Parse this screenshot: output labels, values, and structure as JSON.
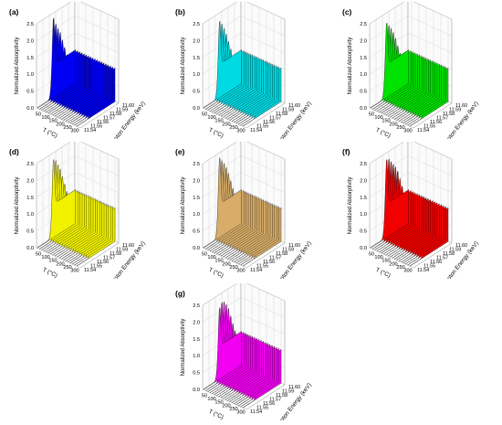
{
  "chart_data": [
    {
      "type": "area",
      "label": "(a)",
      "color": "#0000ff",
      "ylabel": "Normalized Absorptivity",
      "xlabel": "T (°C)",
      "zlabel": "Photon Energy (keV)",
      "yticks": [
        "0.0",
        "0.5",
        "1.0",
        "1.5",
        "2.0",
        "2.5"
      ],
      "xticks": [
        "50",
        "100",
        "150",
        "200",
        "250",
        "300"
      ],
      "zticks": [
        "11.54",
        "11.55",
        "11.56",
        "11.57",
        "11.58",
        "11.59",
        "11.60"
      ],
      "ylim": [
        0,
        2.5
      ],
      "xlim": [
        25,
        325
      ],
      "zlim": [
        11.54,
        11.6
      ],
      "series_temperatures": [
        30,
        45,
        60,
        75,
        90,
        105,
        120,
        135,
        150,
        165,
        180,
        195,
        210,
        225,
        240,
        255,
        270,
        285,
        300
      ],
      "peak_absorptivity": [
        2.45,
        2.3,
        2.2,
        2.1,
        1.9,
        1.7,
        1.5,
        1.35,
        1.25,
        1.2,
        1.18,
        1.17,
        1.17,
        1.17,
        1.17,
        1.17,
        1.17,
        1.17,
        1.17
      ],
      "post_edge_absorptivity": 1.0
    },
    {
      "type": "area",
      "label": "(b)",
      "color": "#00e5ee",
      "ylabel": "Normalized Absorptivity",
      "xlabel": "T (°C)",
      "zlabel": "Photon Energy (keV)",
      "yticks": [
        "0.0",
        "0.5",
        "1.0",
        "1.5",
        "2.0",
        "2.5"
      ],
      "xticks": [
        "50",
        "100",
        "150",
        "200",
        "250",
        "300"
      ],
      "zticks": [
        "11.54",
        "11.55",
        "11.56",
        "11.57",
        "11.58",
        "11.59",
        "11.60"
      ],
      "ylim": [
        0,
        2.5
      ],
      "xlim": [
        25,
        325
      ],
      "zlim": [
        11.54,
        11.6
      ],
      "series_temperatures": [
        30,
        45,
        60,
        75,
        90,
        105,
        120,
        135,
        150,
        165,
        180,
        195,
        210,
        225,
        240,
        255,
        270,
        285,
        300
      ],
      "peak_absorptivity": [
        2.35,
        2.3,
        2.2,
        2.05,
        1.85,
        1.65,
        1.45,
        1.3,
        1.22,
        1.18,
        1.16,
        1.15,
        1.15,
        1.15,
        1.15,
        1.15,
        1.15,
        1.15,
        1.15
      ],
      "post_edge_absorptivity": 1.0
    },
    {
      "type": "area",
      "label": "(c)",
      "color": "#00ee00",
      "ylabel": "Normalized Absorptivity",
      "xlabel": "T (°C)",
      "zlabel": "Photon Energy (keV)",
      "yticks": [
        "0.0",
        "0.5",
        "1.0",
        "1.5",
        "2.0",
        "2.5"
      ],
      "xticks": [
        "50",
        "100",
        "150",
        "200",
        "250",
        "300"
      ],
      "zticks": [
        "11.54",
        "11.55",
        "11.56",
        "11.57",
        "11.58",
        "11.59",
        "11.60"
      ],
      "ylim": [
        0,
        2.5
      ],
      "xlim": [
        25,
        325
      ],
      "zlim": [
        11.54,
        11.6
      ],
      "series_temperatures": [
        30,
        45,
        60,
        75,
        90,
        105,
        120,
        135,
        150,
        165,
        180,
        195,
        210,
        225,
        240,
        255,
        270,
        285,
        300
      ],
      "peak_absorptivity": [
        2.3,
        2.25,
        2.2,
        2.1,
        1.95,
        1.75,
        1.55,
        1.4,
        1.3,
        1.22,
        1.18,
        1.16,
        1.15,
        1.15,
        1.15,
        1.15,
        1.15,
        1.15,
        1.15
      ],
      "post_edge_absorptivity": 1.0
    },
    {
      "type": "area",
      "label": "(d)",
      "color": "#ffff00",
      "ylabel": "Normalized Absorptivity",
      "xlabel": "T (°C)",
      "zlabel": "Photon Energy (keV)",
      "yticks": [
        "0.0",
        "0.5",
        "1.0",
        "1.5",
        "2.0",
        "2.5"
      ],
      "xticks": [
        "50",
        "100",
        "150",
        "200",
        "250",
        "300"
      ],
      "zticks": [
        "11.54",
        "11.55",
        "11.56",
        "11.57",
        "11.58",
        "11.59",
        "11.60"
      ],
      "ylim": [
        0,
        2.5
      ],
      "xlim": [
        25,
        325
      ],
      "zlim": [
        11.54,
        11.6
      ],
      "series_temperatures": [
        30,
        45,
        60,
        75,
        90,
        105,
        120,
        135,
        150,
        165,
        180,
        195,
        210,
        225,
        240,
        255,
        270,
        285,
        300
      ],
      "peak_absorptivity": [
        2.4,
        2.4,
        2.3,
        2.2,
        2.0,
        1.8,
        1.6,
        1.45,
        1.32,
        1.25,
        1.2,
        1.18,
        1.17,
        1.17,
        1.17,
        1.17,
        1.17,
        1.17,
        1.17
      ],
      "post_edge_absorptivity": 1.0
    },
    {
      "type": "area",
      "label": "(e)",
      "color": "#e3b66e",
      "ylabel": "Normalized Absorptivity",
      "xlabel": "T (°C)",
      "zlabel": "Photon Energy (keV)",
      "yticks": [
        "0.0",
        "0.5",
        "1.0",
        "1.5",
        "2.0",
        "2.5"
      ],
      "xticks": [
        "50",
        "100",
        "150",
        "200",
        "250",
        "300"
      ],
      "zticks": [
        "11.54",
        "11.55",
        "11.56",
        "11.57",
        "11.58",
        "11.59",
        "11.60"
      ],
      "ylim": [
        0,
        2.5
      ],
      "xlim": [
        25,
        325
      ],
      "zlim": [
        11.54,
        11.6
      ],
      "series_temperatures": [
        30,
        45,
        60,
        75,
        90,
        105,
        120,
        135,
        150,
        165,
        180,
        195,
        210,
        225,
        240,
        255,
        270,
        285,
        300
      ],
      "peak_absorptivity": [
        2.45,
        2.4,
        2.35,
        2.25,
        2.1,
        1.9,
        1.7,
        1.5,
        1.35,
        1.25,
        1.2,
        1.18,
        1.17,
        1.17,
        1.17,
        1.17,
        1.17,
        1.17,
        1.17
      ],
      "post_edge_absorptivity": 1.0
    },
    {
      "type": "area",
      "label": "(f)",
      "color": "#ff0000",
      "ylabel": "Normalized Absorptivity",
      "xlabel": "T (°C)",
      "zlabel": "Photon Energy (keV)",
      "yticks": [
        "0.0",
        "0.5",
        "1.0",
        "1.5",
        "2.0",
        "2.5"
      ],
      "xticks": [
        "50",
        "100",
        "150",
        "200",
        "250",
        "300"
      ],
      "zticks": [
        "11.54",
        "11.55",
        "11.56",
        "11.57",
        "11.58",
        "11.59",
        "11.60"
      ],
      "ylim": [
        0,
        2.5
      ],
      "xlim": [
        25,
        325
      ],
      "zlim": [
        11.54,
        11.6
      ],
      "series_temperatures": [
        30,
        45,
        60,
        75,
        90,
        105,
        120,
        135,
        150,
        165,
        180,
        195,
        210,
        225,
        240,
        255,
        270,
        285,
        300
      ],
      "peak_absorptivity": [
        2.4,
        2.45,
        2.4,
        2.35,
        2.3,
        2.2,
        2.0,
        1.8,
        1.6,
        1.4,
        1.3,
        1.22,
        1.18,
        1.17,
        1.17,
        1.17,
        1.17,
        1.17,
        1.17
      ],
      "post_edge_absorptivity": 1.0
    },
    {
      "type": "area",
      "label": "(g)",
      "color": "#ff00ff",
      "ylabel": "Normalized Absorptivity",
      "xlabel": "T (°C)",
      "zlabel": "Photon Energy (keV)",
      "yticks": [
        "0.0",
        "0.5",
        "1.0",
        "1.5",
        "2.0",
        "2.5"
      ],
      "xticks": [
        "50",
        "100",
        "150",
        "200",
        "250",
        "300"
      ],
      "zticks": [
        "11.54",
        "11.55",
        "11.56",
        "11.57",
        "11.58",
        "11.59",
        "11.60"
      ],
      "ylim": [
        0,
        2.5
      ],
      "xlim": [
        25,
        325
      ],
      "zlim": [
        11.54,
        11.6
      ],
      "series_temperatures": [
        30,
        45,
        60,
        75,
        90,
        105,
        120,
        135,
        150,
        165,
        180,
        195,
        210,
        225,
        240,
        255,
        270,
        285,
        300
      ],
      "peak_absorptivity": [
        2.2,
        2.4,
        2.45,
        2.4,
        2.3,
        2.1,
        1.9,
        1.7,
        1.5,
        1.35,
        1.25,
        1.2,
        1.18,
        1.17,
        1.17,
        1.17,
        1.17,
        1.17,
        1.17
      ],
      "post_edge_absorptivity": 1.0
    }
  ]
}
